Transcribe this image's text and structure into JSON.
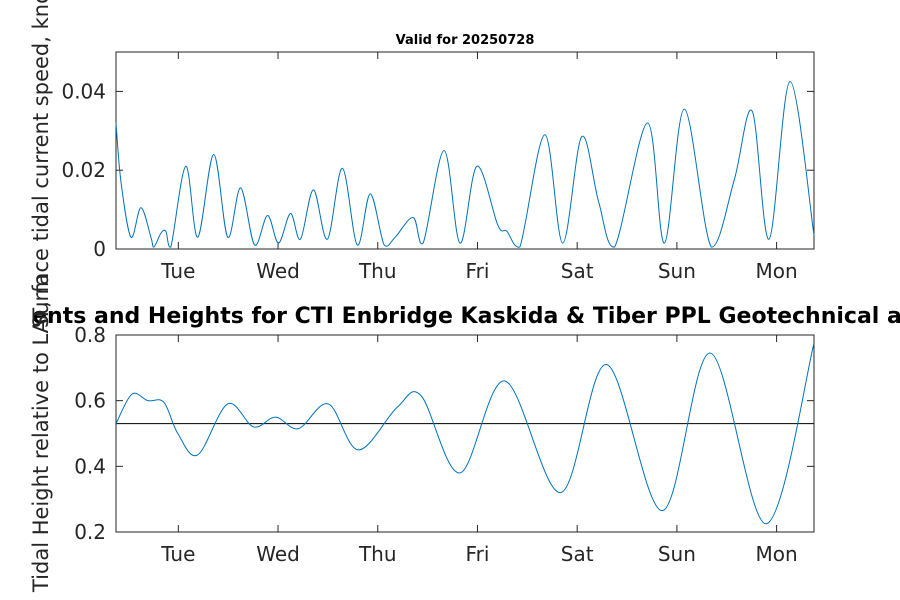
{
  "chart_data": [
    {
      "type": "line",
      "title": "Valid for 20250728",
      "ylabel": "Surface tidal current speed, knots",
      "ylim": [
        0,
        0.05
      ],
      "yticks": [
        0,
        0.02,
        0.04
      ],
      "ytick_labels": [
        "0",
        "0.02",
        "0.04"
      ],
      "xlim": [
        0,
        7
      ],
      "xtick_positions": [
        0.625,
        1.625,
        2.625,
        3.625,
        4.625,
        5.625,
        6.625
      ],
      "xtick_labels": [
        "Tue",
        "Wed",
        "Thu",
        "Fri",
        "Sat",
        "Sun",
        "Mon"
      ],
      "series": [
        {
          "color": "#0072BD",
          "x": [
            0,
            0.05,
            0.15,
            0.25,
            0.35,
            0.38,
            0.45,
            0.5,
            0.55,
            0.7,
            0.82,
            0.98,
            1.12,
            1.25,
            1.39,
            1.52,
            1.63,
            1.75,
            1.85,
            1.98,
            2.12,
            2.27,
            2.42,
            2.55,
            2.69,
            2.8,
            2.98,
            3.08,
            3.29,
            3.45,
            3.62,
            3.83,
            3.92,
            4.05,
            4.3,
            4.48,
            4.67,
            4.84,
            5.0,
            5.33,
            5.5,
            5.7,
            5.97,
            6.2,
            6.38,
            6.55,
            6.76,
            7.0
          ],
          "y": [
            0.032,
            0.017,
            0.003,
            0.0105,
            0.003,
            0.0005,
            0.004,
            0.0045,
            0.0005,
            0.021,
            0.003,
            0.024,
            0.003,
            0.0155,
            0.001,
            0.0085,
            0.0015,
            0.009,
            0.0025,
            0.015,
            0.0025,
            0.0205,
            0.001,
            0.014,
            0.001,
            0.003,
            0.008,
            0.0015,
            0.025,
            0.0015,
            0.021,
            0.006,
            0.0045,
            0.0005,
            0.029,
            0.0015,
            0.0285,
            0.012,
            0.0005,
            0.032,
            0.0015,
            0.0355,
            0.0005,
            0.0175,
            0.035,
            0.0025,
            0.0425,
            0.0035
          ]
        }
      ]
    },
    {
      "type": "line",
      "title": "ents and Heights for CTI Enbridge  Kaskida & Tiber PPL Geotechnical a",
      "ylabel": "Tidal Height relative to LAT, m",
      "ylim": [
        0.2,
        0.8
      ],
      "yticks": [
        0.2,
        0.4,
        0.6,
        0.8
      ],
      "ytick_labels": [
        "0.2",
        "0.4",
        "0.6",
        "0.8"
      ],
      "xlim": [
        0,
        7
      ],
      "xtick_positions": [
        0.625,
        1.625,
        2.625,
        3.625,
        4.625,
        5.625,
        6.625
      ],
      "xtick_labels": [
        "Tue",
        "Wed",
        "Thu",
        "Fri",
        "Sat",
        "Sun",
        "Mon"
      ],
      "reference_line": 0.53,
      "series": [
        {
          "color": "#0072BD",
          "x": [
            0,
            0.16,
            0.32,
            0.48,
            0.62,
            0.82,
            1.12,
            1.38,
            1.6,
            1.83,
            2.13,
            2.43,
            2.82,
            3.06,
            3.45,
            3.9,
            4.46,
            4.92,
            5.48,
            5.96,
            6.52,
            7.0
          ],
          "y": [
            0.53,
            0.62,
            0.6,
            0.595,
            0.5,
            0.435,
            0.59,
            0.52,
            0.55,
            0.515,
            0.59,
            0.45,
            0.58,
            0.615,
            0.38,
            0.66,
            0.32,
            0.71,
            0.265,
            0.745,
            0.225,
            0.775
          ]
        }
      ]
    }
  ]
}
